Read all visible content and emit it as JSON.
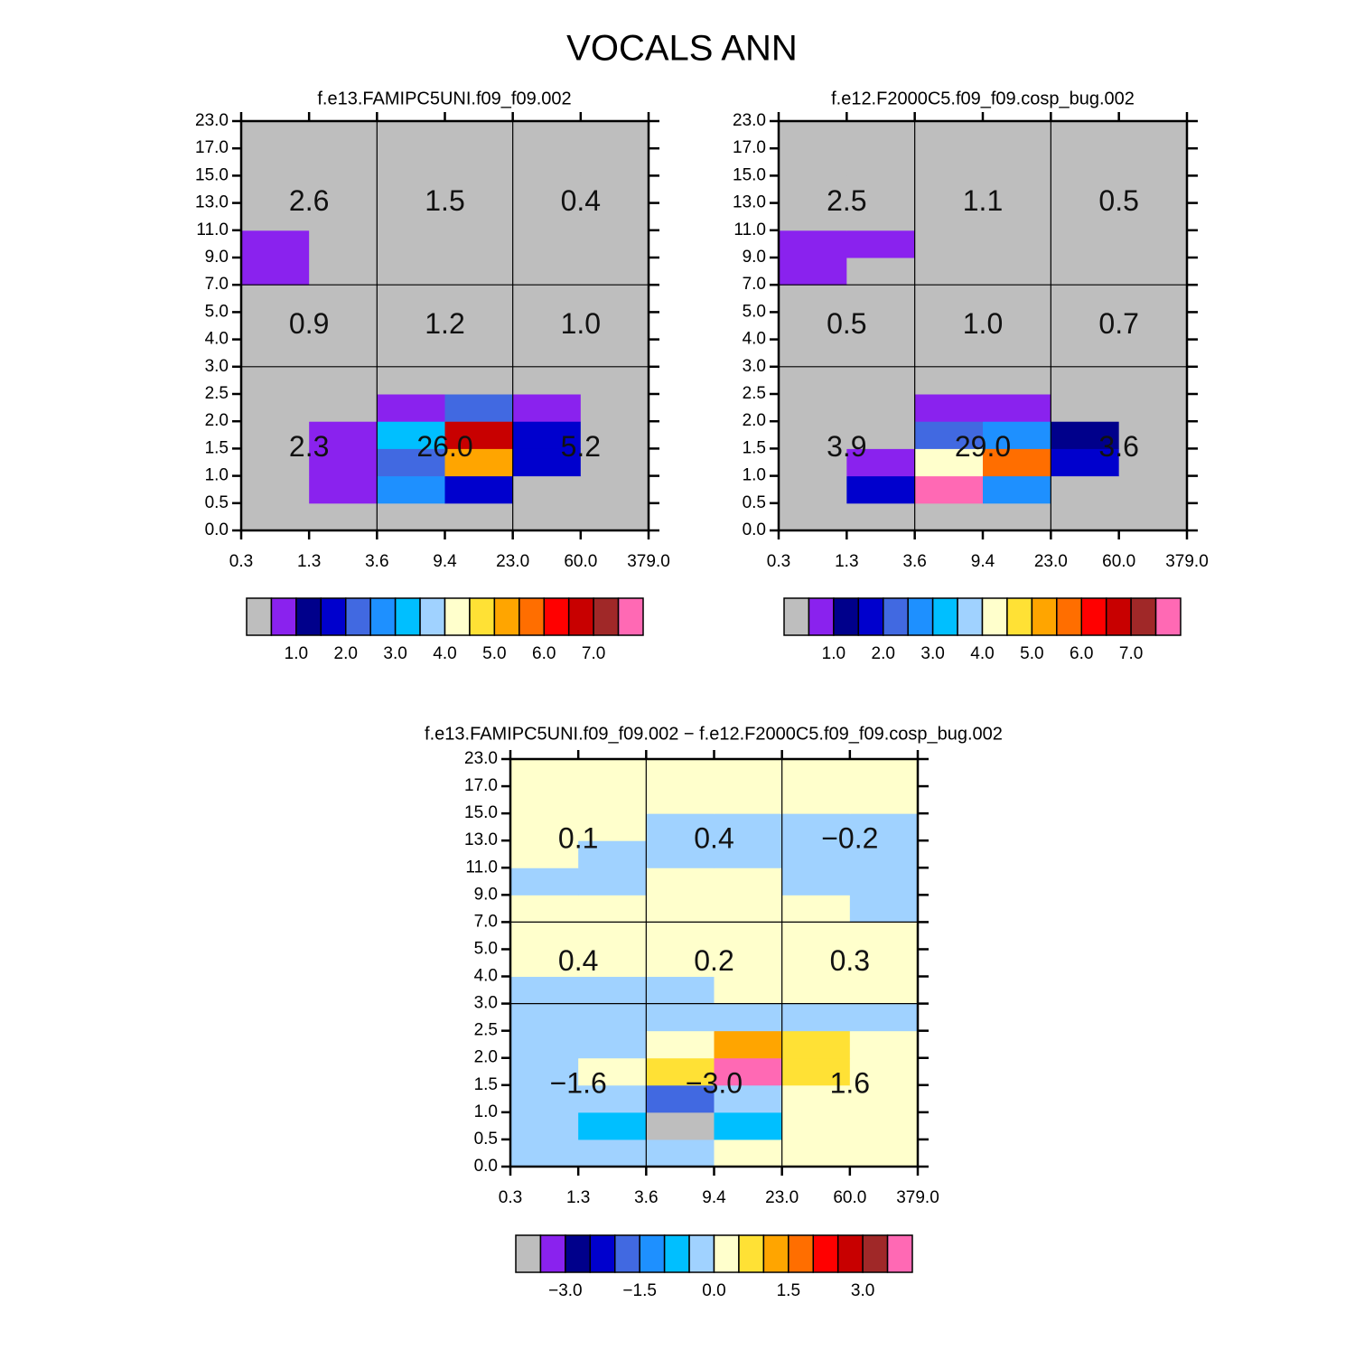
{
  "title": "VOCALS ANN",
  "chart_data": [
    {
      "type": "heatmap",
      "title": "f.e13.FAMIPC5UNI.f09_f09.002",
      "xbins": [
        0.3,
        1.3,
        3.6,
        9.4,
        {
          "value": 23,
          "label": "23.0"
        },
        {
          "value": 60,
          "label": "60.0"
        },
        {
          "value": 379,
          "label": "379.0"
        }
      ],
      "ybins": [
        {
          "value": 0,
          "label": "0.0"
        },
        0.5,
        {
          "value": 1,
          "label": "1.0"
        },
        1.5,
        {
          "value": 2,
          "label": "2.0"
        },
        2.5,
        {
          "value": 3,
          "label": "3.0"
        },
        {
          "value": 4,
          "label": "4.0"
        },
        {
          "value": 5,
          "label": "5.0"
        },
        {
          "value": 7,
          "label": "7.0"
        },
        {
          "value": 9,
          "label": "9.0"
        },
        {
          "value": 11,
          "label": "11.0"
        },
        {
          "value": 13,
          "label": "13.0"
        },
        {
          "value": 15,
          "label": "15.0"
        },
        {
          "value": 17,
          "label": "17.0"
        },
        {
          "value": 23,
          "label": "23.0"
        }
      ],
      "values": [
        [
          0.2,
          0.2,
          0.2,
          0.2,
          0.2,
          0.2
        ],
        [
          0.2,
          0.7,
          2.7,
          1.7,
          0.2,
          0.2
        ],
        [
          0.2,
          0.7,
          2.2,
          5.2,
          1.7,
          0.2
        ],
        [
          0.2,
          0.7,
          3.2,
          6.7,
          1.7,
          0.2
        ],
        [
          0.2,
          0.2,
          0.7,
          2.2,
          0.7,
          0.2
        ],
        [
          0.2,
          0.2,
          0.2,
          0.2,
          0.2,
          0.2
        ],
        [
          0.2,
          0.2,
          0.2,
          0.2,
          0.2,
          0.2
        ],
        [
          0.2,
          0.2,
          0.2,
          0.2,
          0.2,
          0.2
        ],
        [
          0.2,
          0.2,
          0.2,
          0.2,
          0.2,
          0.2
        ],
        [
          0.7,
          0.2,
          0.2,
          0.2,
          0.2,
          0.2
        ],
        [
          0.7,
          0.2,
          0.2,
          0.2,
          0.2,
          0.2
        ],
        [
          0.2,
          0.2,
          0.2,
          0.2,
          0.2,
          0.2
        ],
        [
          0.2,
          0.2,
          0.2,
          0.2,
          0.2,
          0.2
        ],
        [
          0.2,
          0.2,
          0.2,
          0.2,
          0.2,
          0.2
        ],
        [
          0.2,
          0.2,
          0.2,
          0.2,
          0.2,
          0.2
        ]
      ],
      "region_values": [
        [
          2.6,
          1.5,
          0.4
        ],
        [
          0.9,
          1.2,
          1.0
        ],
        [
          2.3,
          26.0,
          5.2
        ]
      ],
      "region_value_labels": [
        [
          "2.6",
          "1.5",
          "0.4"
        ],
        [
          "0.9",
          "1.2",
          "1.0"
        ],
        [
          "2.3",
          "26.0",
          "5.2"
        ]
      ],
      "colorbar": {
        "levels": [
          0.5,
          1,
          1.5,
          2,
          2.5,
          3,
          3.5,
          4,
          4.5,
          5,
          5.5,
          6,
          6.5,
          7,
          7.5
        ],
        "colors": [
          "#bebebe",
          "#8a22ee",
          "#00008b",
          "#0000cd",
          "#4169e1",
          "#1e90ff",
          "#00bfff",
          "#a0d2ff",
          "#ffffcc",
          "#ffe135",
          "#ffa500",
          "#ff6e00",
          "#ff0000",
          "#c80000",
          "#a02828",
          "#ff69b4"
        ],
        "ticks": [
          {
            "value": 1,
            "label": "1.0"
          },
          {
            "value": 2,
            "label": "2.0"
          },
          {
            "value": 3,
            "label": "3.0"
          },
          {
            "value": 4,
            "label": "4.0"
          },
          {
            "value": 5,
            "label": "5.0"
          },
          {
            "value": 6,
            "label": "6.0"
          },
          {
            "value": 7,
            "label": "7.0"
          }
        ]
      }
    },
    {
      "type": "heatmap",
      "title": "f.e12.F2000C5.f09_f09.cosp_bug.002",
      "xbins": [
        0.3,
        1.3,
        3.6,
        9.4,
        {
          "value": 23,
          "label": "23.0"
        },
        {
          "value": 60,
          "label": "60.0"
        },
        {
          "value": 379,
          "label": "379.0"
        }
      ],
      "ybins": [
        {
          "value": 0,
          "label": "0.0"
        },
        0.5,
        {
          "value": 1,
          "label": "1.0"
        },
        1.5,
        {
          "value": 2,
          "label": "2.0"
        },
        2.5,
        {
          "value": 3,
          "label": "3.0"
        },
        {
          "value": 4,
          "label": "4.0"
        },
        {
          "value": 5,
          "label": "5.0"
        },
        {
          "value": 7,
          "label": "7.0"
        },
        {
          "value": 9,
          "label": "9.0"
        },
        {
          "value": 11,
          "label": "11.0"
        },
        {
          "value": 13,
          "label": "13.0"
        },
        {
          "value": 15,
          "label": "15.0"
        },
        {
          "value": 17,
          "label": "17.0"
        },
        {
          "value": 23,
          "label": "23.0"
        }
      ],
      "values": [
        [
          0.2,
          0.2,
          0.2,
          0.2,
          0.2,
          0.2
        ],
        [
          0.2,
          1.7,
          8,
          2.7,
          0.2,
          0.2
        ],
        [
          0.2,
          0.7,
          4.2,
          5.7,
          1.7,
          0.2
        ],
        [
          0.2,
          0.2,
          2.2,
          2.7,
          1.2,
          0.2
        ],
        [
          0.2,
          0.2,
          0.7,
          0.7,
          0.2,
          0.2
        ],
        [
          0.2,
          0.2,
          0.2,
          0.2,
          0.2,
          0.2
        ],
        [
          0.2,
          0.2,
          0.2,
          0.2,
          0.2,
          0.2
        ],
        [
          0.2,
          0.2,
          0.2,
          0.2,
          0.2,
          0.2
        ],
        [
          0.2,
          0.2,
          0.2,
          0.2,
          0.2,
          0.2
        ],
        [
          0.7,
          0.2,
          0.2,
          0.2,
          0.2,
          0.2
        ],
        [
          0.7,
          0.7,
          0.2,
          0.2,
          0.2,
          0.2
        ],
        [
          0.2,
          0.2,
          0.2,
          0.2,
          0.2,
          0.2
        ],
        [
          0.2,
          0.2,
          0.2,
          0.2,
          0.2,
          0.2
        ],
        [
          0.2,
          0.2,
          0.2,
          0.2,
          0.2,
          0.2
        ],
        [
          0.2,
          0.2,
          0.2,
          0.2,
          0.2,
          0.2
        ]
      ],
      "region_values": [
        [
          2.5,
          1.1,
          0.5
        ],
        [
          0.5,
          1.0,
          0.7
        ],
        [
          3.9,
          29.0,
          3.6
        ]
      ],
      "region_value_labels": [
        [
          "2.5",
          "1.1",
          "0.5"
        ],
        [
          "0.5",
          "1.0",
          "0.7"
        ],
        [
          "3.9",
          "29.0",
          "3.6"
        ]
      ],
      "colorbar": {
        "levels": [
          0.5,
          1,
          1.5,
          2,
          2.5,
          3,
          3.5,
          4,
          4.5,
          5,
          5.5,
          6,
          6.5,
          7,
          7.5
        ],
        "colors": [
          "#bebebe",
          "#8a22ee",
          "#00008b",
          "#0000cd",
          "#4169e1",
          "#1e90ff",
          "#00bfff",
          "#a0d2ff",
          "#ffffcc",
          "#ffe135",
          "#ffa500",
          "#ff6e00",
          "#ff0000",
          "#c80000",
          "#a02828",
          "#ff69b4"
        ],
        "ticks": [
          {
            "value": 1,
            "label": "1.0"
          },
          {
            "value": 2,
            "label": "2.0"
          },
          {
            "value": 3,
            "label": "3.0"
          },
          {
            "value": 4,
            "label": "4.0"
          },
          {
            "value": 5,
            "label": "5.0"
          },
          {
            "value": 6,
            "label": "6.0"
          },
          {
            "value": 7,
            "label": "7.0"
          }
        ]
      }
    },
    {
      "type": "heatmap",
      "title": "f.e13.FAMIPC5UNI.f09_f09.002 − f.e12.F2000C5.f09_f09.cosp_bug.002",
      "xbins": [
        0.3,
        1.3,
        3.6,
        9.4,
        {
          "value": 23,
          "label": "23.0"
        },
        {
          "value": 60,
          "label": "60.0"
        },
        {
          "value": 379,
          "label": "379.0"
        }
      ],
      "ybins": [
        {
          "value": 0,
          "label": "0.0"
        },
        0.5,
        {
          "value": 1,
          "label": "1.0"
        },
        1.5,
        {
          "value": 2,
          "label": "2.0"
        },
        2.5,
        {
          "value": 3,
          "label": "3.0"
        },
        {
          "value": 4,
          "label": "4.0"
        },
        {
          "value": 5,
          "label": "5.0"
        },
        {
          "value": 7,
          "label": "7.0"
        },
        {
          "value": 9,
          "label": "9.0"
        },
        {
          "value": 11,
          "label": "11.0"
        },
        {
          "value": 13,
          "label": "13.0"
        },
        {
          "value": 15,
          "label": "15.0"
        },
        {
          "value": 17,
          "label": "17.0"
        },
        {
          "value": 23,
          "label": "23.0"
        }
      ],
      "values": [
        [
          -0.2,
          -0.2,
          -0.2,
          0.2,
          0.2,
          0.2
        ],
        [
          -0.2,
          -0.7,
          -3.8,
          -0.7,
          0.2,
          0.2
        ],
        [
          -0.2,
          -0.2,
          -1.7,
          -0.2,
          0.2,
          0.2
        ],
        [
          -0.2,
          0.2,
          0.7,
          3.8,
          0.7,
          0.2
        ],
        [
          -0.2,
          -0.2,
          0.2,
          1.2,
          0.7,
          0.2
        ],
        [
          -0.2,
          -0.2,
          -0.2,
          -0.2,
          -0.2,
          -0.2
        ],
        [
          -0.2,
          -0.2,
          -0.2,
          0.2,
          0.2,
          0.2
        ],
        [
          0.2,
          0.2,
          0.2,
          0.2,
          0.2,
          0.2
        ],
        [
          0.2,
          0.2,
          0.2,
          0.2,
          0.2,
          0.2
        ],
        [
          0.2,
          0.2,
          0.2,
          0.2,
          0.2,
          -0.2
        ],
        [
          -0.2,
          -0.2,
          0.2,
          0.2,
          -0.2,
          -0.2
        ],
        [
          0.2,
          -0.2,
          -0.2,
          -0.2,
          -0.2,
          -0.2
        ],
        [
          0.2,
          0.2,
          -0.2,
          -0.2,
          -0.2,
          -0.2
        ],
        [
          0.2,
          0.2,
          0.2,
          0.2,
          0.2,
          0.2
        ],
        [
          0.2,
          0.2,
          0.2,
          0.2,
          0.2,
          0.2
        ]
      ],
      "region_values": [
        [
          0.1,
          0.4,
          -0.2
        ],
        [
          0.4,
          0.2,
          0.3
        ],
        [
          -1.6,
          -3.0,
          1.6
        ]
      ],
      "region_value_labels": [
        [
          "0.1",
          "0.4",
          "−0.2"
        ],
        [
          "0.4",
          "0.2",
          "0.3"
        ],
        [
          "−1.6",
          "−3.0",
          "1.6"
        ]
      ],
      "colorbar": {
        "levels": [
          -3.5,
          -3,
          -2.5,
          -2,
          -1.5,
          -1,
          -0.5,
          0,
          0.5,
          1,
          1.5,
          2,
          2.5,
          3,
          3.5
        ],
        "colors": [
          "#bebebe",
          "#8a22ee",
          "#00008b",
          "#0000cd",
          "#4169e1",
          "#1e90ff",
          "#00bfff",
          "#a0d2ff",
          "#ffffcc",
          "#ffe135",
          "#ffa500",
          "#ff6e00",
          "#ff0000",
          "#c80000",
          "#a02828",
          "#ff69b4"
        ],
        "ticks": [
          {
            "value": -3,
            "label": "−3.0"
          },
          {
            "value": -1.5,
            "label": "−1.5"
          },
          {
            "value": 0,
            "label": "0.0"
          },
          {
            "value": 1.5,
            "label": "1.5"
          },
          {
            "value": 3,
            "label": "3.0"
          }
        ]
      }
    }
  ]
}
